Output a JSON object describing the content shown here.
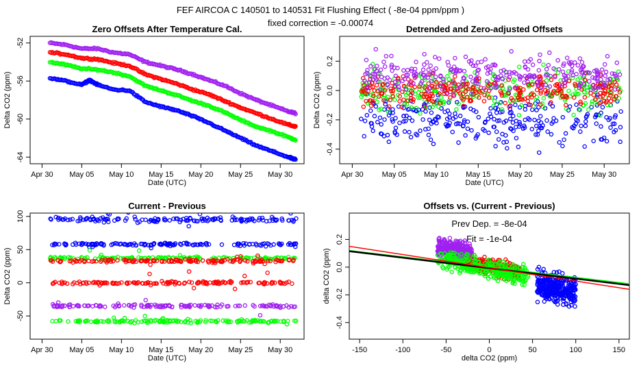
{
  "figure": {
    "title": "FEF   AIRCOA C   140501 to 140531   Fit Flushing Effect ( -8e-04 ppm/ppm )",
    "subtitle": "fixed correction = -0.00074"
  },
  "colors": {
    "blue": "#0000ff",
    "red": "#ff0000",
    "green": "#00ff00",
    "purple": "#a020f0",
    "black": "#000000"
  },
  "chart_data": [
    {
      "id": "zero_offsets",
      "type": "scatter",
      "title": "Zero Offsets After Temperature Cal.",
      "xlabel": "Date (UTC)",
      "ylabel": "Delta CO2 (ppm)",
      "xlim": [
        -1.5,
        33
      ],
      "ylim": [
        -64.7,
        -51.3
      ],
      "x_ticks": [
        0,
        5,
        10,
        15,
        20,
        25,
        30
      ],
      "x_tick_labels": [
        "Apr 30",
        "May 05",
        "May 10",
        "May 15",
        "May 20",
        "May 25",
        "May 30"
      ],
      "y_ticks": [
        -52,
        -56,
        -60,
        -64
      ],
      "y_tick_labels": [
        "-52",
        "-56",
        "-60",
        "-64"
      ],
      "series": [
        {
          "name": "purple",
          "color": "purple",
          "x": [
            1,
            3,
            5,
            7,
            9,
            11,
            13,
            15,
            17,
            19,
            21,
            23,
            25,
            27,
            29,
            31,
            32
          ],
          "y": [
            -52.0,
            -52.2,
            -52.6,
            -52.6,
            -53.0,
            -53.2,
            -54.0,
            -54.4,
            -54.8,
            -55.3,
            -55.9,
            -56.5,
            -57.3,
            -58.0,
            -58.6,
            -59.2,
            -59.4
          ]
        },
        {
          "name": "red",
          "color": "red",
          "x": [
            1,
            3,
            5,
            7,
            9,
            11,
            13,
            15,
            17,
            19,
            21,
            23,
            25,
            27,
            29,
            31,
            32
          ],
          "y": [
            -53.0,
            -53.2,
            -53.6,
            -53.7,
            -54.1,
            -54.4,
            -55.3,
            -55.8,
            -56.3,
            -56.9,
            -57.4,
            -58.1,
            -58.8,
            -59.4,
            -60.0,
            -60.6,
            -60.8
          ]
        },
        {
          "name": "green",
          "color": "green",
          "x": [
            1,
            3,
            5,
            7,
            9,
            11,
            13,
            15,
            17,
            19,
            21,
            23,
            25,
            27,
            29,
            31,
            32
          ],
          "y": [
            -54.0,
            -54.3,
            -54.7,
            -54.8,
            -55.1,
            -55.5,
            -56.5,
            -57.0,
            -57.5,
            -58.1,
            -58.6,
            -59.3,
            -60.1,
            -60.8,
            -61.3,
            -61.9,
            -62.2
          ]
        },
        {
          "name": "blue",
          "color": "blue",
          "x": [
            1,
            3,
            5,
            6,
            7,
            9,
            11,
            13,
            15,
            17,
            19,
            21,
            23,
            25,
            27,
            29,
            31,
            32
          ],
          "y": [
            -55.7,
            -56.0,
            -56.4,
            -55.9,
            -56.4,
            -56.9,
            -57.0,
            -58.2,
            -58.7,
            -59.1,
            -59.7,
            -60.4,
            -61.2,
            -62.0,
            -62.8,
            -63.4,
            -64.0,
            -64.3
          ]
        }
      ]
    },
    {
      "id": "detrended",
      "type": "scatter",
      "title": "Detrended and Zero-adjusted Offsets",
      "xlabel": "Date (UTC)",
      "ylabel": "Delta CO2 (ppm)",
      "xlim": [
        -1.5,
        33
      ],
      "ylim": [
        -0.5,
        0.37
      ],
      "x_ticks": [
        0,
        5,
        10,
        15,
        20,
        25,
        30
      ],
      "x_tick_labels": [
        "Apr 30",
        "May 05",
        "May 10",
        "May 15",
        "May 20",
        "May 25",
        "May 30"
      ],
      "y_ticks": [
        0.2,
        0.0,
        -0.2,
        -0.4
      ],
      "y_tick_labels": [
        "0.2",
        "0.0",
        "-0.2",
        "-0.4"
      ],
      "series": [
        {
          "name": "blue",
          "color": "blue",
          "x_range": [
            1,
            32
          ],
          "center": -0.2,
          "spread": 0.25
        },
        {
          "name": "green",
          "color": "green",
          "x_range": [
            1,
            32
          ],
          "center": 0.0,
          "spread": 0.2
        },
        {
          "name": "red",
          "color": "red",
          "x_range": [
            1,
            32
          ],
          "center": 0.0,
          "spread": 0.15
        },
        {
          "name": "purple",
          "color": "purple",
          "x_range": [
            1,
            32
          ],
          "center": 0.12,
          "spread": 0.18
        }
      ]
    },
    {
      "id": "current_previous",
      "type": "scatter",
      "title": "Current - Previous",
      "xlabel": "Date (UTC)",
      "ylabel": "Delta CO2 (ppm)",
      "xlim": [
        -1.5,
        33
      ],
      "ylim": [
        -85,
        105
      ],
      "x_ticks": [
        0,
        5,
        10,
        15,
        20,
        25,
        30
      ],
      "x_tick_labels": [
        "Apr 30",
        "May 05",
        "May 10",
        "May 15",
        "May 20",
        "May 25",
        "May 30"
      ],
      "y_ticks": [
        100,
        50,
        0,
        -50
      ],
      "y_tick_labels": [
        "100",
        "50",
        "0",
        "-50"
      ],
      "series": [
        {
          "name": "blue",
          "color": "blue",
          "levels": [
            95,
            58
          ]
        },
        {
          "name": "green",
          "color": "green",
          "levels": [
            37,
            -58
          ]
        },
        {
          "name": "red",
          "color": "red",
          "levels": [
            33,
            0
          ]
        },
        {
          "name": "purple",
          "color": "purple",
          "levels": [
            -35
          ]
        }
      ]
    },
    {
      "id": "offsets_vs_diff",
      "type": "scatter",
      "title": "Offsets vs. (Current - Previous)",
      "xlabel": "delta CO2 (ppm)",
      "ylabel": "delta CO2 (ppm)",
      "xlim": [
        -162,
        162
      ],
      "ylim": [
        -0.52,
        0.39
      ],
      "x_ticks": [
        -150,
        -100,
        -50,
        0,
        50,
        100,
        150
      ],
      "x_tick_labels": [
        "-150",
        "-100",
        "-50",
        "0",
        "50",
        "100",
        "150"
      ],
      "y_ticks": [
        0.2,
        0.0,
        -0.2,
        -0.4
      ],
      "y_tick_labels": [
        "0.2",
        "0.0",
        "-0.2",
        "-0.4"
      ],
      "annotations": [
        "Prev Dep. =  -8e-04",
        "Fit  =  -1e-04"
      ],
      "fit_lines": [
        {
          "name": "green fit",
          "color": "green",
          "x": [
            -162,
            162
          ],
          "y": [
            0.12,
            -0.12
          ]
        },
        {
          "name": "black fit",
          "color": "black",
          "x": [
            -162,
            162
          ],
          "y": [
            0.115,
            -0.13
          ]
        },
        {
          "name": "red fit",
          "color": "red",
          "x": [
            -162,
            162
          ],
          "y": [
            0.15,
            -0.16
          ]
        }
      ],
      "series": [
        {
          "name": "purple",
          "color": "purple",
          "x_range": [
            -60,
            -20
          ],
          "center": 0.12
        },
        {
          "name": "red",
          "color": "red",
          "x_range": [
            -25,
            35
          ],
          "center": 0.0
        },
        {
          "name": "green",
          "color": "green",
          "x_range": [
            -60,
            45
          ],
          "center": 0.0
        },
        {
          "name": "blue",
          "color": "blue",
          "x_range": [
            55,
            100
          ],
          "center": -0.15
        }
      ]
    }
  ]
}
